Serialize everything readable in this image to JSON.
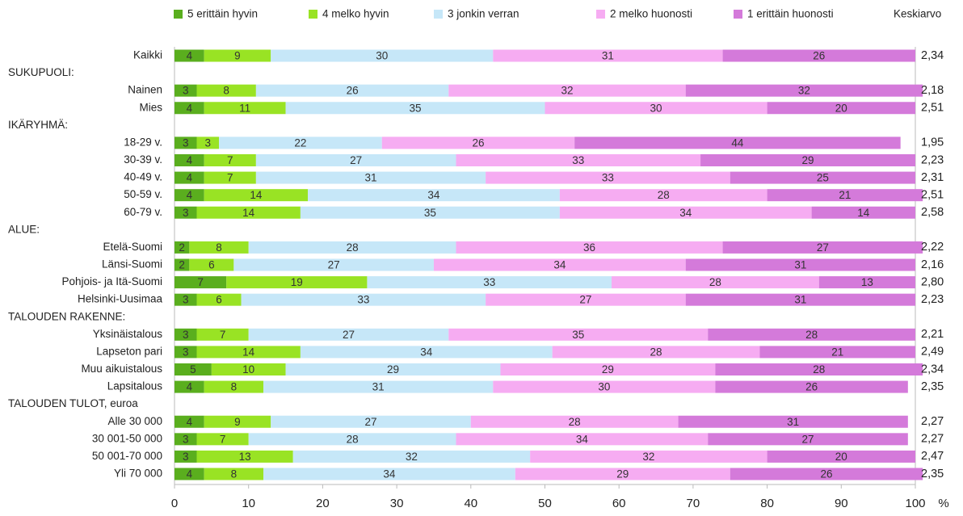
{
  "chart_data": {
    "type": "stacked_barh",
    "categories": [
      "Kaikki",
      "SUKUPUOLI:",
      "Nainen",
      "Mies",
      "IKÄRYHMÄ:",
      "18-29 v.",
      "30-39 v.",
      "40-49 v.",
      "50-59 v.",
      "60-79 v.",
      "ALUE:",
      "Etelä-Suomi",
      "Länsi-Suomi",
      "Pohjois- ja Itä-Suomi",
      "Helsinki-Uusimaa",
      "TALOUDEN RAKENNE:",
      "Yksinäistalous",
      "Lapseton pari",
      "Muu aikuistalous",
      "Lapsitalous",
      "TALOUDEN TULOT, euroa",
      "Alle 30 000",
      "30 001-50 000",
      "50 001-70 000",
      "Yli 70 000"
    ],
    "series": [
      {
        "name": "5 erittäin hyvin",
        "color": "#5aae1e",
        "values": [
          4,
          null,
          3,
          4,
          null,
          3,
          4,
          4,
          4,
          3,
          null,
          2,
          2,
          7,
          3,
          null,
          3,
          3,
          5,
          4,
          null,
          4,
          3,
          3,
          4
        ]
      },
      {
        "name": "4 melko hyvin",
        "color": "#99e324",
        "values": [
          9,
          null,
          8,
          11,
          null,
          3,
          7,
          7,
          14,
          14,
          null,
          8,
          6,
          19,
          6,
          null,
          7,
          14,
          10,
          8,
          null,
          9,
          7,
          13,
          8
        ]
      },
      {
        "name": "3 jonkin verran",
        "color": "#c6e7f8",
        "values": [
          30,
          null,
          26,
          35,
          null,
          22,
          27,
          31,
          34,
          35,
          null,
          28,
          27,
          33,
          33,
          null,
          27,
          34,
          29,
          31,
          null,
          27,
          28,
          32,
          34
        ]
      },
      {
        "name": "2 melko huonosti",
        "color": "#f6acf2",
        "values": [
          31,
          null,
          32,
          30,
          null,
          26,
          33,
          33,
          28,
          34,
          null,
          36,
          34,
          28,
          27,
          null,
          35,
          28,
          29,
          30,
          null,
          28,
          34,
          32,
          29
        ]
      },
      {
        "name": "1 erittäin huonosti",
        "color": "#d47ada",
        "values": [
          26,
          null,
          32,
          20,
          null,
          44,
          29,
          25,
          21,
          14,
          null,
          27,
          31,
          13,
          31,
          null,
          28,
          21,
          28,
          26,
          null,
          31,
          27,
          20,
          26
        ]
      }
    ],
    "averages": {
      "name": "Keskiarvo",
      "values": [
        2.34,
        null,
        2.18,
        2.51,
        null,
        1.95,
        2.23,
        2.31,
        2.51,
        2.58,
        null,
        2.22,
        2.16,
        2.8,
        2.23,
        null,
        2.21,
        2.49,
        2.34,
        2.35,
        null,
        2.27,
        2.27,
        2.47,
        2.35
      ],
      "value_labels": [
        "2,34",
        null,
        "2,18",
        "2,51",
        null,
        "1,95",
        "2,23",
        "2,31",
        "2,51",
        "2,58",
        null,
        "2,22",
        "2,16",
        "2,80",
        "2,23",
        null,
        "2,21",
        "2,49",
        "2,34",
        "2,35",
        null,
        "2,27",
        "2,27",
        "2,47",
        "2,35"
      ]
    },
    "xlabel": "%",
    "xlim": [
      0,
      100
    ],
    "xticks": [
      0,
      10,
      20,
      30,
      40,
      50,
      60,
      70,
      80,
      90,
      100
    ],
    "legend": "top"
  }
}
